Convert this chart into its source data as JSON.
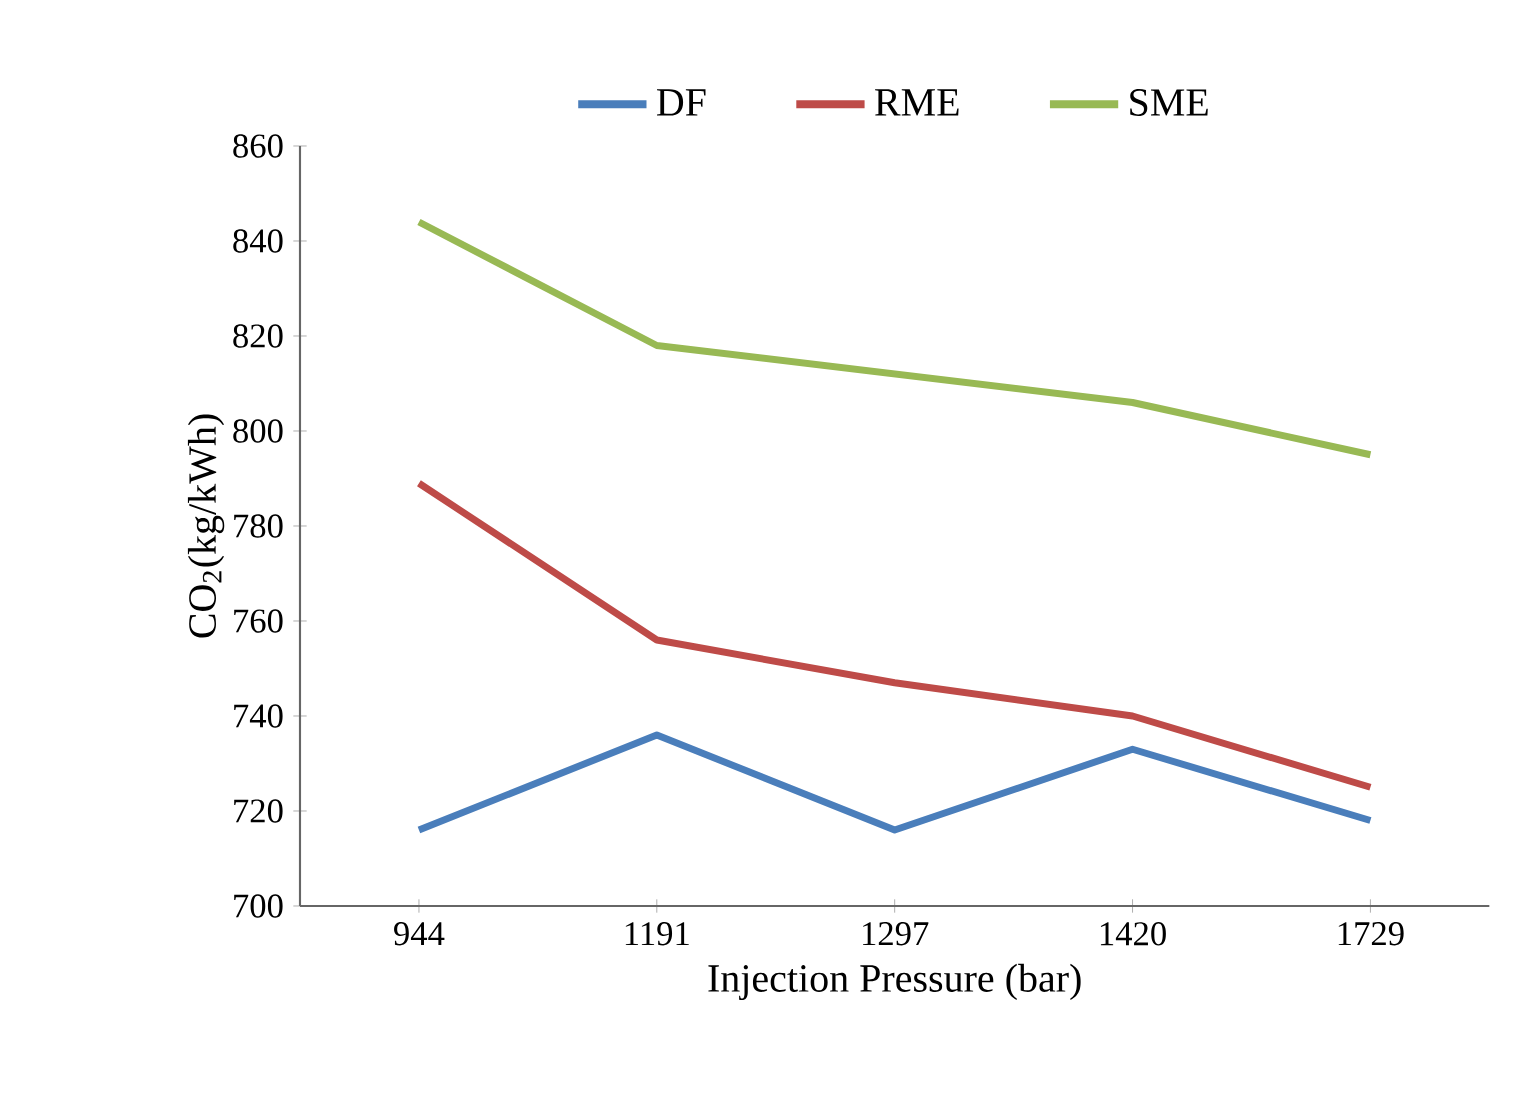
{
  "chart_data": {
    "type": "line",
    "xlabel": "Injection Pressure (bar)",
    "ylabel": "CO$_{2}$(kg/kWh)",
    "categories": [
      "944",
      "1191",
      "1297",
      "1420",
      "1729"
    ],
    "series": [
      {
        "name": "DF",
        "color": "#4a7ebb",
        "values": [
          716,
          736,
          716,
          733,
          718
        ]
      },
      {
        "name": "RME",
        "color": "#be4b48",
        "values": [
          789,
          756,
          747,
          740,
          725
        ]
      },
      {
        "name": "SME",
        "color": "#98b954",
        "values": [
          844,
          818,
          812,
          806,
          795
        ]
      }
    ],
    "ylim": [
      700,
      860
    ],
    "yticks": [
      700,
      720,
      740,
      760,
      780,
      800,
      820,
      840,
      860
    ],
    "legend": "top",
    "grid": false
  }
}
